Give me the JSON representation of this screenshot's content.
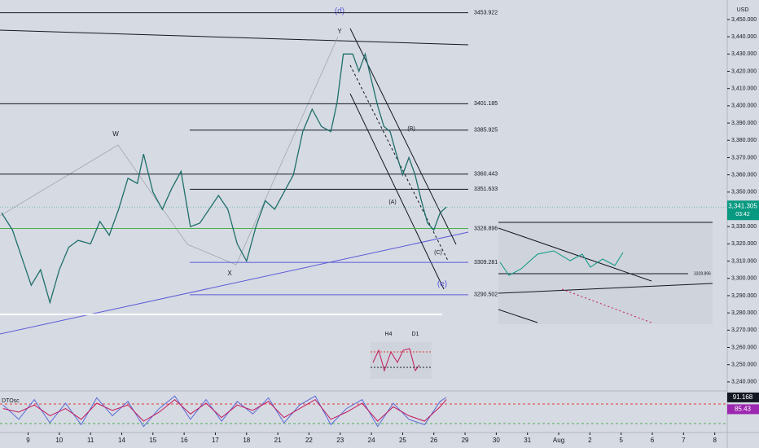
{
  "chart_data": [
    {
      "type": "line",
      "currency": "USD",
      "x": [
        -0.85,
        -0.5,
        -0.2,
        0.1,
        0.4,
        0.7,
        1.0,
        1.3,
        1.6,
        2.0,
        2.3,
        2.6,
        2.9,
        3.2,
        3.5,
        3.7,
        4.0,
        4.3,
        4.6,
        4.9,
        5.2,
        5.5,
        5.8,
        6.1,
        6.4,
        6.7,
        7.0,
        7.3,
        7.6,
        7.9,
        8.2,
        8.5,
        8.8,
        9.1,
        9.4,
        9.7,
        9.9,
        10.1,
        10.4,
        10.6,
        10.8,
        11.0,
        11.2,
        11.4,
        11.6,
        11.8,
        12.0,
        12.2,
        12.4,
        12.6,
        12.8,
        13.0,
        13.2,
        13.4
      ],
      "values": [
        3338,
        3328,
        3312,
        3296,
        3305,
        3286,
        3305,
        3318,
        3322,
        3320,
        3333,
        3325,
        3340,
        3358,
        3355,
        3372,
        3350,
        3340,
        3352,
        3362,
        3330,
        3332,
        3340,
        3348,
        3340,
        3320,
        3310,
        3330,
        3345,
        3340,
        3350,
        3360,
        3385,
        3398,
        3388,
        3385,
        3402,
        3430,
        3430,
        3420,
        3430,
        3415,
        3400,
        3388,
        3385,
        3372,
        3360,
        3370,
        3360,
        3345,
        3332,
        3328,
        3338,
        3341.305
      ],
      "color": "#1e6f6a",
      "xlim": [
        -0.9,
        22.4
      ],
      "xticks": [
        {
          "value": 0,
          "label": "9"
        },
        {
          "value": 1,
          "label": "10"
        },
        {
          "value": 2,
          "label": "11"
        },
        {
          "value": 3,
          "label": "14"
        },
        {
          "value": 4,
          "label": "15"
        },
        {
          "value": 5,
          "label": "16"
        },
        {
          "value": 6,
          "label": "17"
        },
        {
          "value": 7,
          "label": "18"
        },
        {
          "value": 8,
          "label": "21"
        },
        {
          "value": 9,
          "label": "22"
        },
        {
          "value": 10,
          "label": "23"
        },
        {
          "value": 11,
          "label": "24"
        },
        {
          "value": 12,
          "label": "25"
        },
        {
          "value": 13,
          "label": "26"
        },
        {
          "value": 14,
          "label": "29"
        },
        {
          "value": 15,
          "label": "30"
        },
        {
          "value": 16,
          "label": "31"
        },
        {
          "value": 17,
          "label": "Aug"
        },
        {
          "value": 18,
          "label": "2"
        },
        {
          "value": 19,
          "label": "5"
        },
        {
          "value": 20,
          "label": "6"
        },
        {
          "value": 21,
          "label": "7"
        },
        {
          "value": 22,
          "label": "8"
        }
      ],
      "ylim": [
        3235.7,
        3461.3
      ],
      "yticks": [
        {
          "value": 3240,
          "label": "3,240.000"
        },
        {
          "value": 3250,
          "label": "3,250.000"
        },
        {
          "value": 3260,
          "label": "3,260.000"
        },
        {
          "value": 3270,
          "label": "3,270.000"
        },
        {
          "value": 3280,
          "label": "3,280.000"
        },
        {
          "value": 3290,
          "label": "3,290.000"
        },
        {
          "value": 3300,
          "label": "3,300.000"
        },
        {
          "value": 3310,
          "label": "3,310.000"
        },
        {
          "value": 3320,
          "label": "3,320.000"
        },
        {
          "value": 3330,
          "label": "3,330.000"
        },
        {
          "value": 3340,
          "label": "3,340.000"
        },
        {
          "value": 3350,
          "label": "3,350.000"
        },
        {
          "value": 3360,
          "label": "3,360.000"
        },
        {
          "value": 3370,
          "label": "3,370.000"
        },
        {
          "value": 3380,
          "label": "3,380.000"
        },
        {
          "value": 3390,
          "label": "3,390.000"
        },
        {
          "value": 3400,
          "label": "3,400.000"
        },
        {
          "value": 3410,
          "label": "3,410.000"
        },
        {
          "value": 3420,
          "label": "3,420.000"
        },
        {
          "value": 3430,
          "label": "3,430.000"
        },
        {
          "value": 3440,
          "label": "3,440.000"
        },
        {
          "value": 3450,
          "label": "3,450.000"
        }
      ],
      "levels": [
        {
          "value": 3453.922,
          "color": "#131722"
        },
        {
          "value": 3401.185,
          "color": "#131722"
        },
        {
          "value": 3385.925,
          "color": "#131722"
        },
        {
          "value": 3360.443,
          "color": "#131722"
        },
        {
          "value": 3351.633,
          "color": "#131722"
        },
        {
          "value": 3328.896,
          "color": "#4caf50"
        },
        {
          "value": 3309.281,
          "color": "#5b5bd6"
        },
        {
          "value": 3290.502,
          "color": "#5b5bd6"
        }
      ],
      "current": {
        "value": 3341.305,
        "value_label": "3,341.305",
        "countdown": "03:42",
        "color": "#089981"
      },
      "annotations": [
        "(d)",
        "Y",
        "W",
        "X",
        "(B)",
        "(A)",
        "(C)",
        "(e)",
        "H4",
        "D1",
        "3328.896"
      ]
    },
    {
      "type": "line",
      "title": "DTOsc",
      "x": [
        -0.8,
        -0.3,
        0.2,
        0.7,
        1.2,
        1.7,
        2.2,
        2.7,
        3.2,
        3.7,
        4.2,
        4.7,
        5.2,
        5.7,
        6.2,
        6.7,
        7.2,
        7.7,
        8.2,
        8.7,
        9.2,
        9.7,
        10.2,
        10.7,
        11.2,
        11.7,
        12.2,
        12.7,
        13.2,
        13.4
      ],
      "ylim": [
        0,
        100
      ],
      "series": [
        {
          "color": "#5b6bd6",
          "values": [
            70,
            30,
            85,
            20,
            75,
            15,
            90,
            40,
            80,
            10,
            60,
            95,
            30,
            85,
            25,
            80,
            45,
            90,
            20,
            70,
            95,
            15,
            60,
            85,
            10,
            75,
            30,
            15,
            80,
            91.168
          ]
        },
        {
          "color": "#c2185b",
          "values": [
            60,
            50,
            70,
            40,
            60,
            30,
            75,
            55,
            70,
            25,
            50,
            85,
            45,
            75,
            35,
            70,
            55,
            80,
            35,
            60,
            85,
            30,
            50,
            75,
            25,
            65,
            40,
            25,
            65,
            85.43
          ]
        }
      ]
    }
  ]
}
